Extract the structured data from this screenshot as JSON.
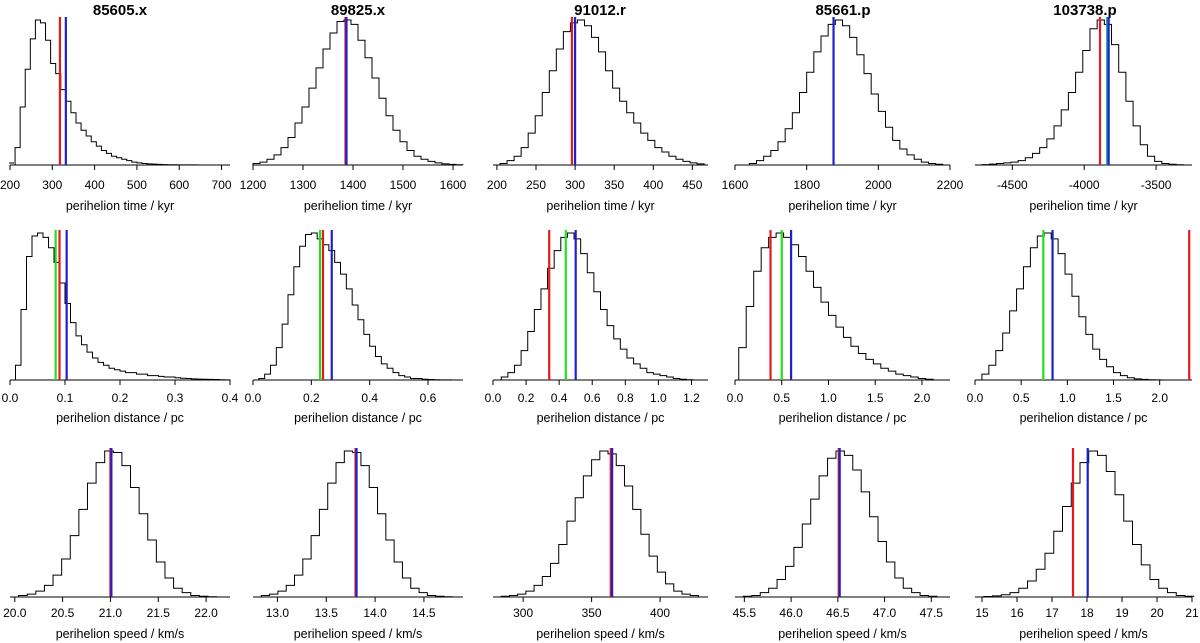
{
  "chart_data": {
    "type": "histogram-grid",
    "rows": [
      {
        "quantity": "perihelion time",
        "xlabel": "perihelion time / kyr"
      },
      {
        "quantity": "perihelion distance",
        "xlabel": "perihelion distance / pc"
      },
      {
        "quantity": "perihelion speed",
        "xlabel": "perihelion speed / km/s"
      }
    ],
    "columns": [
      {
        "title": "85605.x"
      },
      {
        "title": "89825.x"
      },
      {
        "title": "91012.r"
      },
      {
        "title": "85661.p"
      },
      {
        "title": "103738.p"
      }
    ],
    "line_colors": {
      "red": "#e31a1c",
      "green": "#22dd22",
      "blue": "#1f1fcc",
      "cyan": "#18a0a0"
    },
    "panels": [
      [
        {
          "xlim": [
            200,
            720
          ],
          "xticks": [
            200,
            300,
            400,
            500,
            600,
            700
          ],
          "tick_labels": [
            "200",
            "300",
            "400",
            "500",
            "600",
            "700"
          ],
          "bin_start": 212,
          "bin_width": 12,
          "counts": [
            0.12,
            0.4,
            0.66,
            0.87,
            1.0,
            0.98,
            0.86,
            0.7,
            0.63,
            0.52,
            0.44,
            0.36,
            0.29,
            0.24,
            0.2,
            0.16,
            0.13,
            0.1,
            0.08,
            0.06,
            0.05,
            0.04,
            0.03,
            0.02,
            0.015,
            0.01,
            0.008,
            0.006,
            0.004,
            0.003,
            0.002,
            0.0015,
            0.001,
            0.001,
            0.0005,
            0.0005,
            0.0003,
            0.0002,
            0.0001,
            0.0001,
            0.0001,
            0
          ],
          "lines": [
            {
              "color": "red",
              "value": 318
            },
            {
              "color": "blue",
              "value": 332
            }
          ]
        },
        {
          "xlim": [
            1200,
            1620
          ],
          "xticks": [
            1200,
            1300,
            1400,
            1500,
            1600
          ],
          "tick_labels": [
            "1200",
            "1300",
            "1400",
            "1500",
            "1600"
          ],
          "bin_start": 1200,
          "bin_width": 14,
          "counts": [
            0.01,
            0.02,
            0.04,
            0.07,
            0.12,
            0.19,
            0.29,
            0.4,
            0.53,
            0.67,
            0.8,
            0.91,
            0.99,
            1.0,
            0.97,
            0.86,
            0.74,
            0.6,
            0.46,
            0.34,
            0.24,
            0.16,
            0.1,
            0.06,
            0.04,
            0.025,
            0.015,
            0.008,
            0.004,
            0.002
          ],
          "lines": [
            {
              "color": "red",
              "value": 1385
            },
            {
              "color": "blue",
              "value": 1387
            }
          ]
        },
        {
          "xlim": [
            195,
            470
          ],
          "xticks": [
            200,
            250,
            300,
            350,
            400,
            450
          ],
          "tick_labels": [
            "200",
            "250",
            "300",
            "350",
            "400",
            "450"
          ],
          "bin_start": 195,
          "bin_width": 9,
          "counts": [
            0.0,
            0.01,
            0.03,
            0.06,
            0.12,
            0.22,
            0.34,
            0.5,
            0.65,
            0.8,
            0.92,
            0.98,
            1.0,
            0.96,
            0.88,
            0.78,
            0.65,
            0.53,
            0.44,
            0.36,
            0.29,
            0.22,
            0.17,
            0.12,
            0.09,
            0.06,
            0.04,
            0.025,
            0.015,
            0.008
          ],
          "lines": [
            {
              "color": "red",
              "value": 296
            },
            {
              "color": "blue",
              "value": 300
            }
          ]
        },
        {
          "xlim": [
            1600,
            2200
          ],
          "xticks": [
            1600,
            1800,
            2000,
            2200
          ],
          "tick_labels": [
            "1600",
            "1800",
            "2000",
            "2200"
          ],
          "bin_start": 1600,
          "bin_width": 20,
          "counts": [
            0.0,
            0.0,
            0.01,
            0.03,
            0.06,
            0.1,
            0.16,
            0.25,
            0.36,
            0.5,
            0.64,
            0.78,
            0.89,
            0.97,
            1.0,
            0.96,
            0.88,
            0.76,
            0.63,
            0.49,
            0.37,
            0.26,
            0.17,
            0.11,
            0.07,
            0.04,
            0.02,
            0.01,
            0.005,
            0.0
          ],
          "lines": [
            {
              "color": "blue",
              "value": 1875
            }
          ]
        },
        {
          "xlim": [
            -4760,
            -3250
          ],
          "xticks": [
            -4500,
            -4000,
            -3500
          ],
          "tick_labels": [
            "-4500",
            "-4000",
            "-3500"
          ],
          "bin_start": -4760,
          "bin_width": 50,
          "counts": [
            0.0,
            0.003,
            0.006,
            0.01,
            0.015,
            0.02,
            0.03,
            0.05,
            0.08,
            0.12,
            0.18,
            0.27,
            0.38,
            0.5,
            0.64,
            0.79,
            0.94,
            1.0,
            0.97,
            0.83,
            0.64,
            0.44,
            0.27,
            0.14,
            0.06,
            0.025,
            0.01,
            0.005,
            0.002,
            0.0
          ],
          "lines": [
            {
              "color": "red",
              "value": -3890
            },
            {
              "color": "cyan",
              "value": -3840
            },
            {
              "color": "blue",
              "value": -3830
            }
          ]
        }
      ],
      [
        {
          "xlim": [
            0,
            0.4
          ],
          "xticks": [
            0,
            0.1,
            0.2,
            0.3,
            0.4
          ],
          "tick_labels": [
            "0.0",
            "0.1",
            "0.2",
            "0.3",
            "0.4"
          ],
          "bin_start": 0.01,
          "bin_width": 0.01,
          "counts": [
            0.1,
            0.48,
            0.84,
            0.98,
            1.0,
            0.97,
            0.9,
            0.8,
            0.66,
            0.52,
            0.39,
            0.3,
            0.24,
            0.19,
            0.15,
            0.12,
            0.1,
            0.08,
            0.07,
            0.06,
            0.05,
            0.05,
            0.04,
            0.04,
            0.03,
            0.03,
            0.025,
            0.02,
            0.02,
            0.015,
            0.012,
            0.01,
            0.008,
            0.006,
            0.005,
            0.004,
            0.003,
            0.002,
            0.001
          ],
          "lines": [
            {
              "color": "green",
              "value": 0.083
            },
            {
              "color": "red",
              "value": 0.09
            },
            {
              "color": "blue",
              "value": 0.103
            }
          ]
        },
        {
          "xlim": [
            0,
            0.72
          ],
          "xticks": [
            0,
            0.2,
            0.4,
            0.6
          ],
          "tick_labels": [
            "0.0",
            "0.2",
            "0.4",
            "0.6"
          ],
          "bin_start": 0.02,
          "bin_width": 0.02,
          "counts": [
            0.01,
            0.04,
            0.1,
            0.22,
            0.38,
            0.58,
            0.77,
            0.91,
            0.99,
            1.0,
            0.96,
            0.92,
            0.88,
            0.8,
            0.72,
            0.62,
            0.51,
            0.41,
            0.31,
            0.23,
            0.16,
            0.11,
            0.08,
            0.05,
            0.03,
            0.02,
            0.01,
            0.01,
            0.005,
            0.003,
            0.002,
            0.001,
            0.001
          ],
          "lines": [
            {
              "color": "green",
              "value": 0.23
            },
            {
              "color": "red",
              "value": 0.24
            },
            {
              "color": "blue",
              "value": 0.27
            }
          ]
        },
        {
          "xlim": [
            0,
            1.3
          ],
          "xticks": [
            0,
            0.2,
            0.4,
            0.6,
            0.8,
            1.0,
            1.2
          ],
          "tick_labels": [
            "0.0",
            "0.2",
            "0.4",
            "0.6",
            "0.8",
            "1.0",
            "1.2"
          ],
          "bin_start": 0.05,
          "bin_width": 0.04,
          "counts": [
            0.02,
            0.05,
            0.1,
            0.2,
            0.33,
            0.48,
            0.62,
            0.76,
            0.88,
            0.97,
            1.0,
            0.96,
            0.86,
            0.73,
            0.6,
            0.48,
            0.37,
            0.28,
            0.21,
            0.15,
            0.11,
            0.08,
            0.05,
            0.04,
            0.03,
            0.02,
            0.01,
            0.005,
            0.002,
            0.0
          ],
          "lines": [
            {
              "color": "red",
              "value": 0.34
            },
            {
              "color": "green",
              "value": 0.44
            },
            {
              "color": "blue",
              "value": 0.5
            }
          ]
        },
        {
          "xlim": [
            0,
            2.3
          ],
          "xticks": [
            0,
            0.5,
            1.0,
            1.5,
            2.0
          ],
          "tick_labels": [
            "0.0",
            "0.5",
            "1.0",
            "1.5",
            "2.0"
          ],
          "bin_start": 0.04,
          "bin_width": 0.08,
          "counts": [
            0.22,
            0.5,
            0.74,
            0.9,
            0.97,
            1.0,
            0.97,
            0.92,
            0.84,
            0.74,
            0.63,
            0.53,
            0.44,
            0.36,
            0.29,
            0.23,
            0.18,
            0.14,
            0.11,
            0.08,
            0.06,
            0.04,
            0.03,
            0.02,
            0.01,
            0.005
          ],
          "lines": [
            {
              "color": "red",
              "value": 0.38
            },
            {
              "color": "green",
              "value": 0.5
            },
            {
              "color": "blue",
              "value": 0.6
            }
          ]
        },
        {
          "xlim": [
            0,
            2.35
          ],
          "xticks": [
            0,
            0.5,
            1.0,
            1.5,
            2.0
          ],
          "tick_labels": [
            "0.0",
            "0.5",
            "1.0",
            "1.5",
            "2.0"
          ],
          "bin_start": 0.0,
          "bin_width": 0.075,
          "counts": [
            0.0,
            0.04,
            0.1,
            0.2,
            0.32,
            0.47,
            0.62,
            0.77,
            0.9,
            0.98,
            1.0,
            0.96,
            0.86,
            0.72,
            0.57,
            0.43,
            0.31,
            0.21,
            0.14,
            0.09,
            0.05,
            0.03,
            0.015,
            0.008,
            0.004,
            0.002,
            0.001
          ],
          "lines": [
            {
              "color": "green",
              "value": 0.74
            },
            {
              "color": "blue",
              "value": 0.84
            },
            {
              "color": "red",
              "value": 2.32
            }
          ]
        }
      ],
      [
        {
          "xlim": [
            19.95,
            22.25
          ],
          "xticks": [
            20.0,
            20.5,
            21.0,
            21.5,
            22.0
          ],
          "tick_labels": [
            "20.0",
            "20.5",
            "21.0",
            "21.5",
            "22.0"
          ],
          "bin_start": 19.95,
          "bin_width": 0.09,
          "counts": [
            0.0,
            0.01,
            0.02,
            0.04,
            0.08,
            0.15,
            0.26,
            0.42,
            0.6,
            0.78,
            0.92,
            1.0,
            0.99,
            0.9,
            0.75,
            0.57,
            0.39,
            0.24,
            0.13,
            0.06,
            0.03,
            0.01,
            0.005,
            0.002,
            0.0
          ],
          "lines": [
            {
              "color": "red",
              "value": 21.0
            },
            {
              "color": "blue",
              "value": 21.01
            }
          ]
        },
        {
          "xlim": [
            12.75,
            14.9
          ],
          "xticks": [
            13.0,
            13.5,
            14.0,
            14.5
          ],
          "tick_labels": [
            "13.0",
            "13.5",
            "14.0",
            "14.5"
          ],
          "bin_start": 12.75,
          "bin_width": 0.085,
          "counts": [
            0.0,
            0.01,
            0.02,
            0.04,
            0.08,
            0.15,
            0.26,
            0.42,
            0.6,
            0.78,
            0.92,
            1.0,
            0.99,
            0.9,
            0.75,
            0.57,
            0.39,
            0.24,
            0.13,
            0.06,
            0.03,
            0.01,
            0.005,
            0.002,
            0.0
          ],
          "lines": [
            {
              "color": "red",
              "value": 13.8
            },
            {
              "color": "blue",
              "value": 13.81
            }
          ]
        },
        {
          "xlim": [
            278,
            435
          ],
          "xticks": [
            300,
            350,
            400
          ],
          "tick_labels": [
            "300",
            "350",
            "400"
          ],
          "bin_start": 278,
          "bin_width": 6,
          "counts": [
            0.0,
            0.005,
            0.01,
            0.02,
            0.04,
            0.08,
            0.14,
            0.23,
            0.36,
            0.52,
            0.68,
            0.83,
            0.94,
            1.0,
            0.98,
            0.9,
            0.76,
            0.6,
            0.43,
            0.28,
            0.17,
            0.09,
            0.04,
            0.02,
            0.01,
            0.0
          ],
          "lines": [
            {
              "color": "red",
              "value": 364
            },
            {
              "color": "blue",
              "value": 365
            }
          ]
        },
        {
          "xlim": [
            45.4,
            47.7
          ],
          "xticks": [
            45.5,
            46.0,
            46.5,
            47.0,
            47.5
          ],
          "tick_labels": [
            "45.5",
            "46.0",
            "46.5",
            "47.0",
            "47.5"
          ],
          "bin_start": 45.4,
          "bin_width": 0.09,
          "counts": [
            0.0,
            0.005,
            0.01,
            0.03,
            0.06,
            0.12,
            0.21,
            0.34,
            0.5,
            0.67,
            0.83,
            0.95,
            1.0,
            0.97,
            0.87,
            0.72,
            0.55,
            0.38,
            0.24,
            0.13,
            0.06,
            0.03,
            0.01,
            0.005,
            0.0
          ],
          "lines": [
            {
              "color": "red",
              "value": 46.51
            },
            {
              "color": "blue",
              "value": 46.52
            }
          ]
        },
        {
          "xlim": [
            14.8,
            21.0
          ],
          "xticks": [
            15,
            16,
            17,
            18,
            19,
            20,
            21
          ],
          "tick_labels": [
            "15",
            "16",
            "17",
            "18",
            "19",
            "20",
            "21"
          ],
          "bin_start": 14.8,
          "bin_width": 0.25,
          "counts": [
            0.0,
            0.003,
            0.008,
            0.015,
            0.03,
            0.06,
            0.11,
            0.19,
            0.3,
            0.45,
            0.62,
            0.78,
            0.92,
            1.0,
            0.97,
            0.86,
            0.7,
            0.52,
            0.36,
            0.22,
            0.12,
            0.06,
            0.03,
            0.01,
            0.005
          ],
          "lines": [
            {
              "color": "red",
              "value": 17.6
            },
            {
              "color": "blue",
              "value": 18.02
            }
          ]
        }
      ]
    ]
  }
}
